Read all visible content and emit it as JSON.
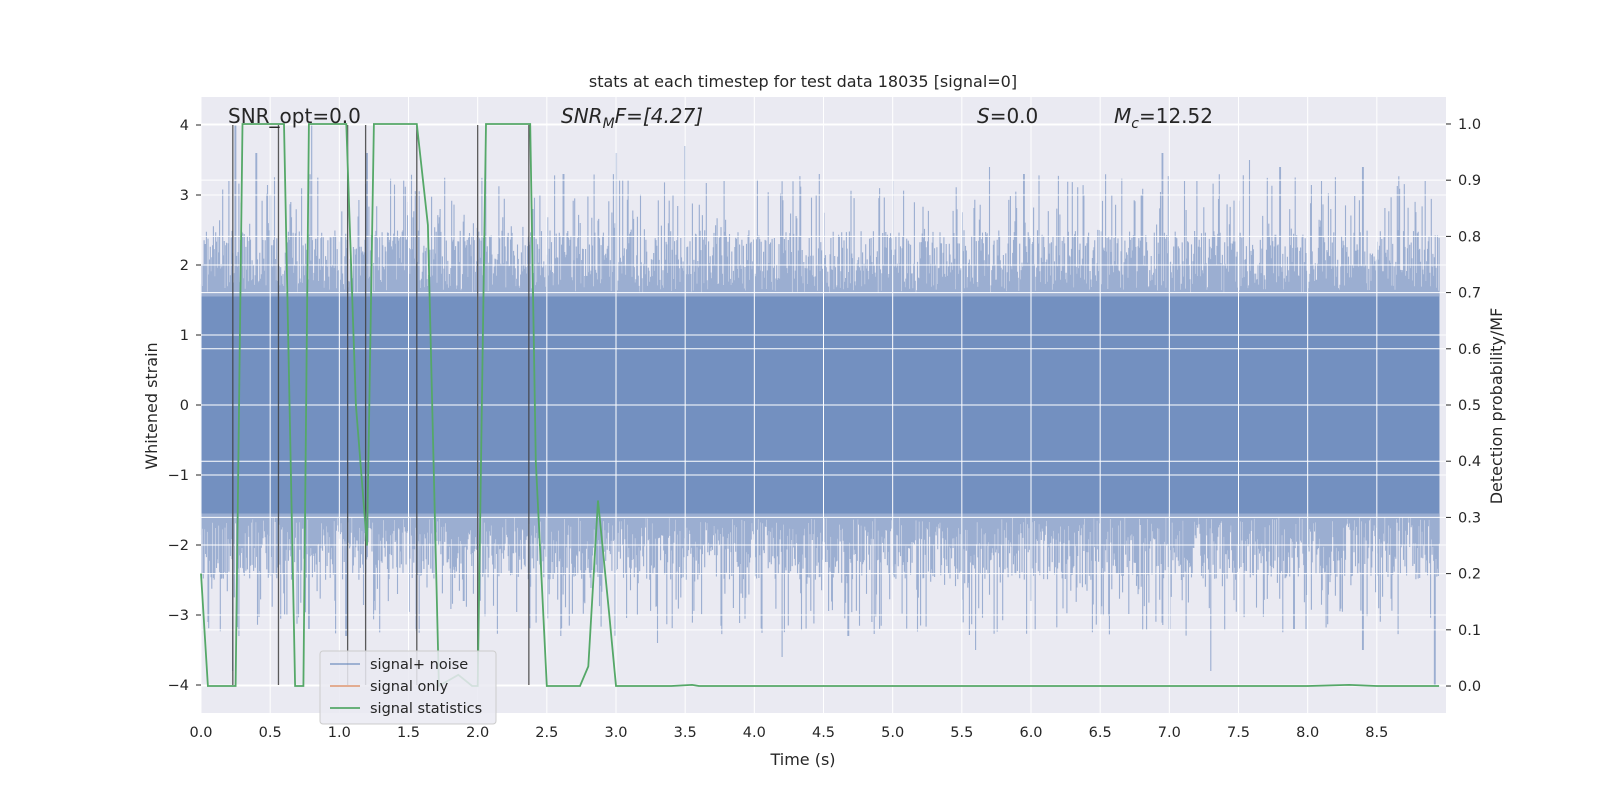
{
  "chart_data": {
    "type": "line",
    "title": "stats at each timestep for test data 18035 [signal=0]",
    "xlabel": "Time (s)",
    "ylabel": "Whitened strain",
    "y2label": "Detection probability/MF",
    "xlim": [
      0.0,
      9.0
    ],
    "ylim": [
      -4.4,
      4.4
    ],
    "y2lim": [
      -0.048,
      1.048
    ],
    "xticks": [
      "0.0",
      "0.5",
      "1.0",
      "1.5",
      "2.0",
      "2.5",
      "3.0",
      "3.5",
      "4.0",
      "4.5",
      "5.0",
      "5.5",
      "6.0",
      "6.5",
      "7.0",
      "7.5",
      "8.0",
      "8.5"
    ],
    "yticks": [
      "−4",
      "−3",
      "−2",
      "−1",
      "0",
      "1",
      "2",
      "3",
      "4"
    ],
    "y2ticks": [
      "0.0",
      "0.1",
      "0.2",
      "0.3",
      "0.4",
      "0.5",
      "0.6",
      "0.7",
      "0.8",
      "0.9",
      "1.0"
    ],
    "grid": true,
    "legend_position": "bottom-left",
    "annotations": {
      "snr_opt": "SNR_opt=0.0",
      "snr_mf_main": "SNR",
      "snr_mf_sub": "M",
      "snr_mf_rest": "F=[4.27]",
      "s_main": "S",
      "s_rest": "=0.0",
      "mc_main": "M",
      "mc_sub": "c",
      "mc_rest": "=12.52"
    },
    "series": [
      {
        "name": "signal+ noise",
        "color": "#4c72b0",
        "envelope_note": "dense whitened noise, approx symmetric about 0, typical amplitude 1.6-2.4, spikes to ±4",
        "peaks_upper": [
          [
            0.03,
            2.3
          ],
          [
            0.2,
            3.2
          ],
          [
            0.25,
            4.0
          ],
          [
            0.4,
            3.6
          ],
          [
            0.5,
            3.0
          ],
          [
            0.65,
            2.9
          ],
          [
            0.8,
            4.0
          ],
          [
            1.2,
            3.6
          ],
          [
            1.5,
            2.9
          ],
          [
            1.73,
            2.8
          ],
          [
            2.06,
            3.6
          ],
          [
            2.4,
            2.8
          ],
          [
            2.62,
            3.3
          ],
          [
            3.0,
            3.6
          ],
          [
            3.5,
            3.7
          ],
          [
            3.78,
            3.2
          ],
          [
            4.3,
            2.7
          ],
          [
            4.47,
            3.3
          ],
          [
            5.0,
            3.2
          ],
          [
            5.7,
            3.4
          ],
          [
            5.95,
            3.3
          ],
          [
            6.8,
            3.0
          ],
          [
            6.95,
            3.6
          ],
          [
            7.2,
            3.2
          ],
          [
            7.58,
            3.5
          ],
          [
            7.8,
            3.4
          ],
          [
            8.1,
            3.2
          ],
          [
            8.4,
            3.4
          ],
          [
            8.85,
            3.2
          ]
        ],
        "peaks_lower": [
          [
            0.05,
            -3.1
          ],
          [
            0.23,
            -3.8
          ],
          [
            0.78,
            -3.2
          ],
          [
            1.05,
            -3.3
          ],
          [
            1.42,
            -2.7
          ],
          [
            1.9,
            -2.8
          ],
          [
            2.6,
            -3.3
          ],
          [
            3.3,
            -3.4
          ],
          [
            3.85,
            -2.9
          ],
          [
            4.2,
            -3.6
          ],
          [
            4.68,
            -3.3
          ],
          [
            4.85,
            -3.1
          ],
          [
            5.6,
            -3.5
          ],
          [
            6.0,
            -2.8
          ],
          [
            7.0,
            -3.2
          ],
          [
            7.3,
            -3.8
          ],
          [
            7.9,
            -3.2
          ],
          [
            8.4,
            -3.5
          ],
          [
            8.92,
            -4.0
          ]
        ]
      },
      {
        "name": "signal only",
        "color": "#dd8452",
        "x": [],
        "y": []
      },
      {
        "name": "signal statistics",
        "color": "#55a868",
        "axis": "right",
        "x": [
          0.0,
          0.05,
          0.25,
          0.3,
          0.55,
          0.6,
          0.68,
          0.74,
          0.78,
          1.05,
          1.12,
          1.2,
          1.25,
          1.56,
          1.64,
          1.72,
          1.86,
          1.96,
          2.0,
          2.06,
          2.12,
          2.38,
          2.42,
          2.5,
          2.56,
          2.62,
          2.74,
          2.8,
          2.87,
          2.95,
          3.0,
          3.4,
          3.55,
          3.6,
          4.0,
          5.0,
          6.0,
          7.0,
          8.0,
          8.3,
          8.5,
          8.95
        ],
        "y": [
          0.2,
          0.0,
          0.0,
          1.0,
          1.0,
          1.0,
          0.0,
          0.0,
          1.0,
          1.0,
          0.5,
          0.25,
          1.0,
          1.0,
          0.82,
          0.0,
          0.02,
          0.0,
          0.0,
          1.0,
          1.0,
          1.0,
          0.4,
          0.0,
          0.0,
          0.0,
          0.0,
          0.035,
          0.33,
          0.13,
          0.0,
          0.0,
          0.002,
          0.0,
          0.0,
          0.0,
          0.0,
          0.0,
          0.0,
          0.002,
          0.0,
          0.0
        ]
      },
      {
        "name": "markers",
        "color": "#404040",
        "note": "thin dark vertical lines spanning y=-4..4",
        "x": [
          0.23,
          0.56,
          1.06,
          1.19,
          1.56,
          2.0,
          2.37
        ]
      }
    ]
  }
}
